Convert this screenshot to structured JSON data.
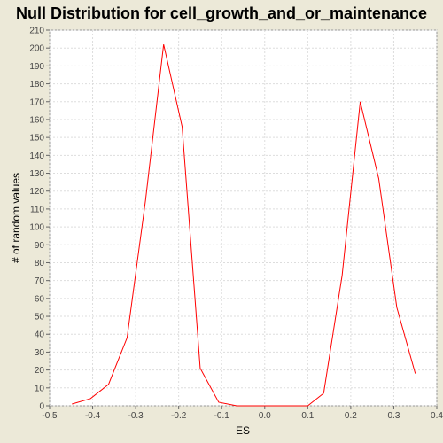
{
  "chart_data": {
    "type": "line",
    "title": "Null Distribution for cell_growth_and_or_maintenance",
    "xlabel": "ES",
    "ylabel": "# of random values",
    "xlim": [
      -0.5,
      0.4
    ],
    "ylim": [
      0,
      210
    ],
    "x_ticks": [
      -0.5,
      -0.4,
      -0.3,
      -0.2,
      -0.1,
      0.0,
      0.1,
      0.2,
      0.3,
      0.4
    ],
    "x_tick_labels": [
      "-0.5",
      "-0.4",
      "-0.3",
      "-0.2",
      "-0.1",
      "0.0",
      "0.1",
      "0.2",
      "0.3",
      "0.4"
    ],
    "y_ticks": [
      0,
      10,
      20,
      30,
      40,
      50,
      60,
      70,
      80,
      90,
      100,
      110,
      120,
      130,
      140,
      150,
      160,
      170,
      180,
      190,
      200,
      210
    ],
    "grid": true,
    "series": [
      {
        "color": "#FF0000",
        "x": [
          -0.448,
          -0.405,
          -0.363,
          -0.32,
          -0.277,
          -0.235,
          -0.192,
          -0.15,
          -0.107,
          -0.065,
          0.1,
          0.137,
          0.18,
          0.222,
          0.265,
          0.307,
          0.35
        ],
        "y": [
          1,
          4,
          12,
          38,
          115,
          202,
          156,
          21,
          2,
          0,
          0,
          7,
          73,
          170,
          127,
          55,
          18
        ]
      }
    ]
  }
}
